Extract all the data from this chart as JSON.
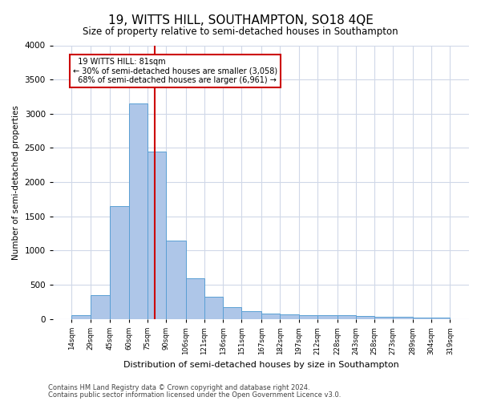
{
  "title": "19, WITTS HILL, SOUTHAMPTON, SO18 4QE",
  "subtitle": "Size of property relative to semi-detached houses in Southampton",
  "xlabel": "Distribution of semi-detached houses by size in Southampton",
  "ylabel": "Number of semi-detached properties",
  "property_size": 81,
  "property_label": "19 WITTS HILL: 81sqm",
  "pct_smaller": 30,
  "count_smaller": "3,058",
  "pct_larger": 68,
  "count_larger": "6,961",
  "bar_color": "#aec6e8",
  "bar_edge_color": "#5a9fd4",
  "red_line_color": "#cc0000",
  "annotation_box_color": "#ffffff",
  "annotation_box_edge": "#cc0000",
  "background_color": "#ffffff",
  "grid_color": "#d0d8e8",
  "bins": [
    14,
    29,
    45,
    60,
    75,
    90,
    106,
    121,
    136,
    151,
    167,
    182,
    197,
    212,
    228,
    243,
    258,
    273,
    289,
    304,
    319
  ],
  "counts": [
    50,
    350,
    1650,
    3150,
    2450,
    1150,
    600,
    320,
    170,
    110,
    80,
    70,
    60,
    55,
    50,
    40,
    35,
    30,
    25,
    20
  ],
  "footer1": "Contains HM Land Registry data © Crown copyright and database right 2024.",
  "footer2": "Contains public sector information licensed under the Open Government Licence v3.0.",
  "ylim": [
    0,
    4000
  ],
  "yticks": [
    0,
    500,
    1000,
    1500,
    2000,
    2500,
    3000,
    3500,
    4000
  ]
}
